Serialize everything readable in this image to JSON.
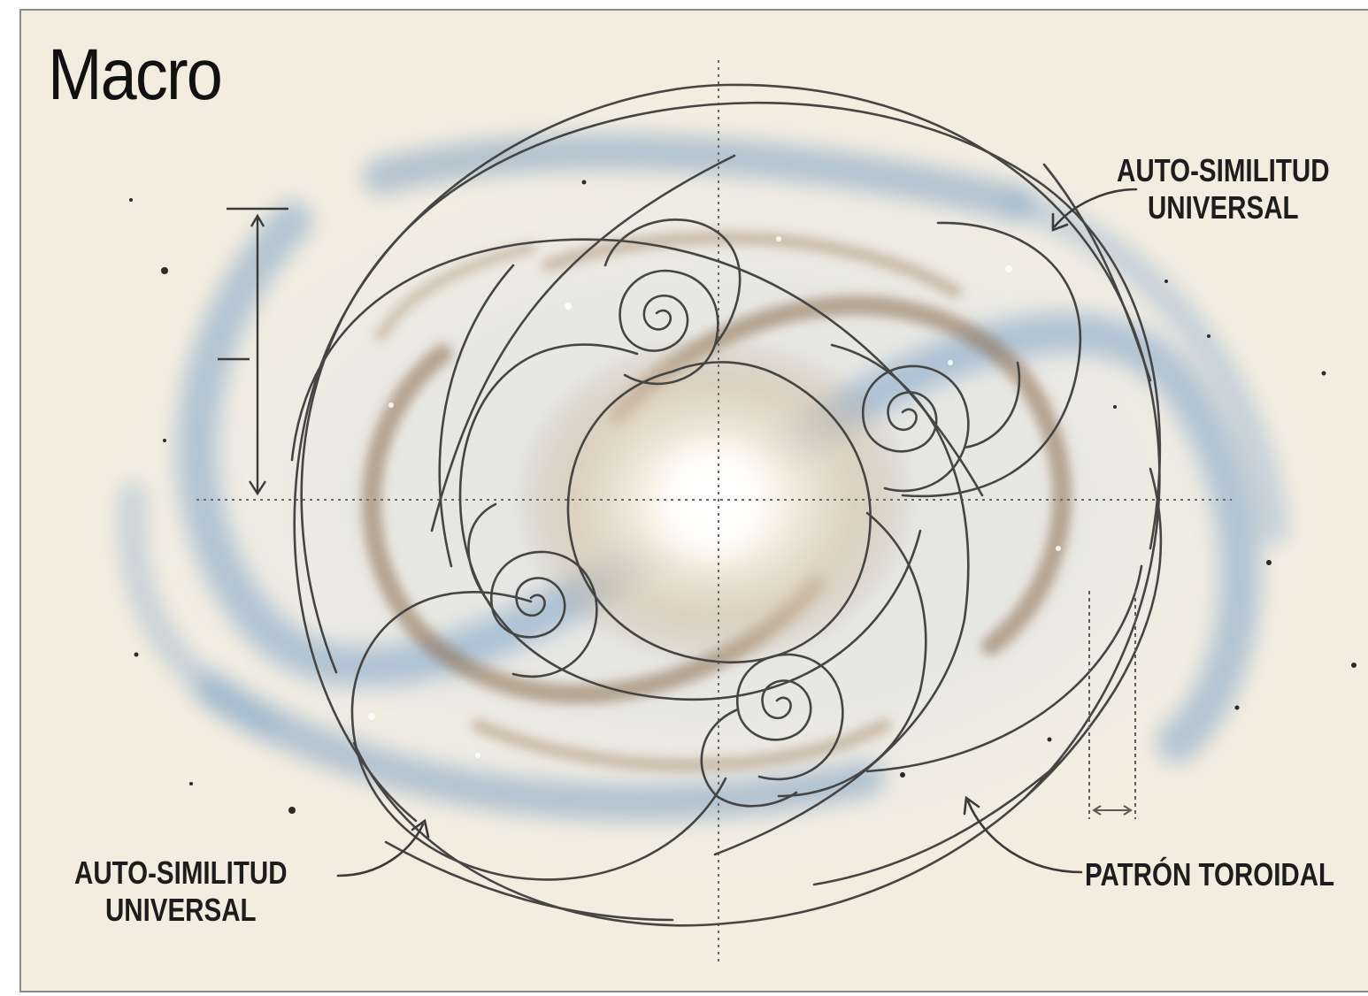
{
  "title": "Macro",
  "labels": {
    "top_right": {
      "line1": "AUTO-SIMILITUD",
      "line2": "UNIVERSAL"
    },
    "bottom_left": {
      "line1": "AUTO-SIMILITUD",
      "line2": "UNIVERSAL"
    },
    "bottom_right": {
      "line1": "PATRÓN TOROIDAL"
    }
  },
  "colors": {
    "paper": "#f3ede0",
    "line": "#4a4a48",
    "arm_blue": "#5a8ab8",
    "dust_brown": "#8a6a4a",
    "core": "#fffdf5"
  }
}
